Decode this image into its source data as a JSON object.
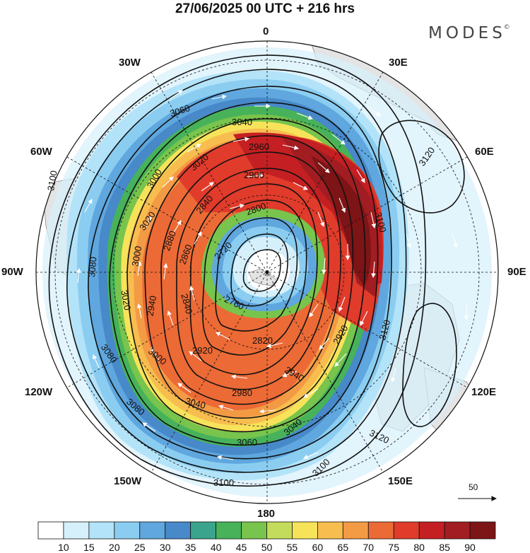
{
  "title": "27/06/2025  00 UTC  + 216 hrs",
  "brand": "MODES",
  "brand_mark": "©",
  "longitude_labels": {
    "lon_0": "0",
    "lon_30e": "30E",
    "lon_60e": "60E",
    "lon_90e": "90E",
    "lon_120e": "120E",
    "lon_150e": "150E",
    "lon_180": "180",
    "lon_150w": "150W",
    "lon_120w": "120W",
    "lon_90w": "90W",
    "lon_60w": "60W",
    "lon_30w": "30W"
  },
  "contour_labels": [
    "3060",
    "3040",
    "2960",
    "3020",
    "2900",
    "3000",
    "2800",
    "3100",
    "3080",
    "3020",
    "2840",
    "2720",
    "2880",
    "3000",
    "2860",
    "2760",
    "3020",
    "2940",
    "2840",
    "2820",
    "3000",
    "2920",
    "2980",
    "3040",
    "3080",
    "3060",
    "3100",
    "3040",
    "3120",
    "3100",
    "3080",
    "3120",
    "3120",
    "2940",
    "2920",
    "3100"
  ],
  "reference_vector_label": "50",
  "colorbar": {
    "tick_labels": [
      "10",
      "15",
      "20",
      "25",
      "30",
      "35",
      "40",
      "45",
      "50",
      "55",
      "60",
      "65",
      "70",
      "75",
      "80",
      "85",
      "90"
    ],
    "colors": [
      "#ffffff",
      "#d6f0fb",
      "#b3e3f8",
      "#8bcdf1",
      "#5fa7de",
      "#4789c9",
      "#3aa48c",
      "#47b25a",
      "#78c44c",
      "#c3dc5b",
      "#f7e35a",
      "#f7bd4f",
      "#f39a45",
      "#ec6a35",
      "#e03b2b",
      "#c41f22",
      "#a11d21",
      "#7d1416"
    ]
  },
  "colors": {
    "contour": "#111111",
    "wind_arrows": "#ffffff",
    "land": "#e4e4e4",
    "coastline": "#8a8a8a"
  }
}
